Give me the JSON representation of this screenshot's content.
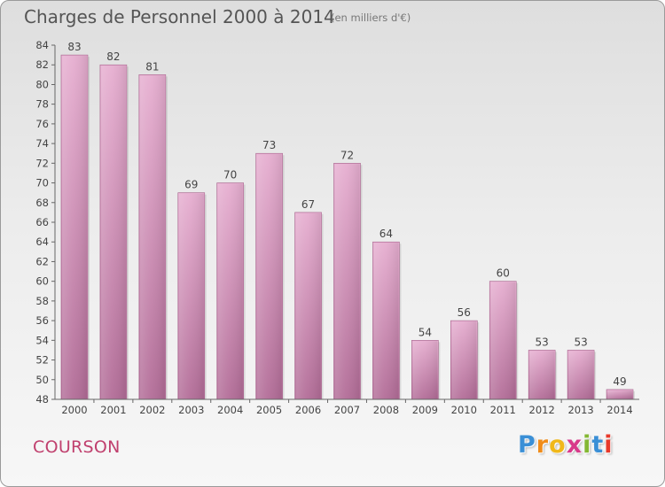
{
  "header": {
    "title": "Charges de Personnel 2000 à 2014",
    "subtitle": "(en milliers d'€)"
  },
  "footer": {
    "place_name": "COURSON",
    "logo_letters": [
      "P",
      "r",
      "o",
      "x",
      "i",
      "t",
      "i"
    ]
  },
  "colors": {
    "bar_top": "#e6aed0",
    "bar_bottom": "#b26c97",
    "place_name": "#c0406e",
    "logo": [
      "#3a8fd6",
      "#f08c1a",
      "#f0b81a",
      "#d8398a",
      "#84b834",
      "#3a8fd6",
      "#e8392a"
    ]
  },
  "chart_data": {
    "type": "bar",
    "title": "Charges de Personnel 2000 à 2014",
    "subtitle": "(en milliers d'€)",
    "categories": [
      "2000",
      "2001",
      "2002",
      "2003",
      "2004",
      "2005",
      "2006",
      "2007",
      "2008",
      "2009",
      "2010",
      "2011",
      "2012",
      "2013",
      "2014"
    ],
    "values": [
      83,
      82,
      81,
      69,
      70,
      73,
      67,
      72,
      64,
      54,
      56,
      60,
      53,
      53,
      49
    ],
    "ylim": [
      48,
      84
    ],
    "yticks": [
      48,
      50,
      52,
      54,
      56,
      58,
      60,
      62,
      64,
      66,
      68,
      70,
      72,
      74,
      76,
      78,
      80,
      82,
      84
    ],
    "grid": false,
    "legend": "none",
    "xlabel": "",
    "ylabel": ""
  }
}
